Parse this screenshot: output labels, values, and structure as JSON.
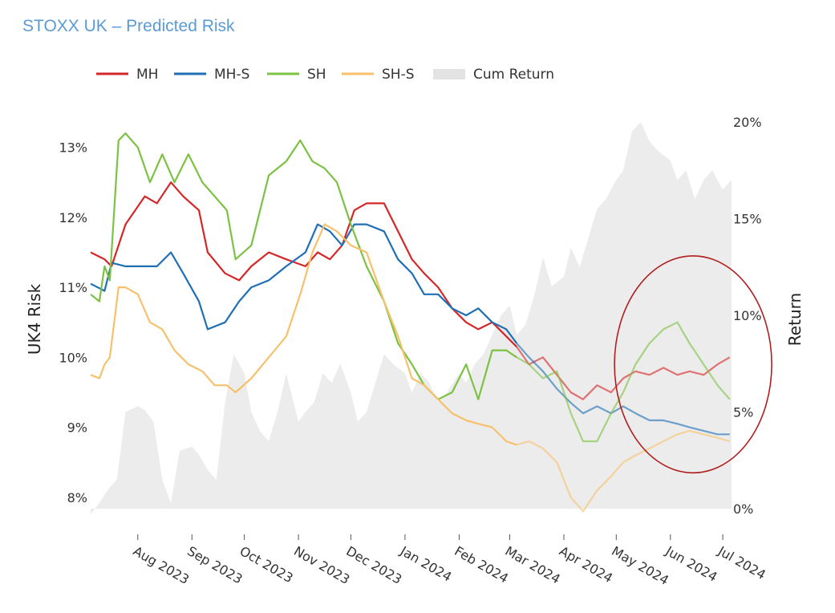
{
  "chart_data": {
    "type": "line",
    "title": "STOXX UK – Predicted Risk",
    "ylabel_left": "UK4 Risk",
    "ylabel_right": "Return",
    "ylim_left": [
      7.7,
      13.5
    ],
    "ylim_right": [
      -0.5,
      20.5
    ],
    "yticks_left": [
      8,
      9,
      10,
      11,
      12,
      13
    ],
    "yticks_left_labels": [
      "8%",
      "9%",
      "10%",
      "11%",
      "12%",
      "13%"
    ],
    "yticks_right": [
      0,
      5,
      10,
      15,
      20
    ],
    "yticks_right_labels": [
      "0%",
      "5%",
      "10%",
      "15%",
      "20%"
    ],
    "x_range": [
      "2023-07-05",
      "2024-07-06"
    ],
    "x_ticks": [
      "2023-08-01",
      "2023-09-01",
      "2023-10-01",
      "2023-11-01",
      "2023-12-01",
      "2024-01-01",
      "2024-02-01",
      "2024-03-01",
      "2024-04-01",
      "2024-05-01",
      "2024-06-01",
      "2024-07-01"
    ],
    "x_tick_labels": [
      "Aug 2023",
      "Sep 2023",
      "Oct 2023",
      "Nov 2023",
      "Dec 2023",
      "Jan 2024",
      "Feb 2024",
      "Mar 2024",
      "Apr 2024",
      "May 2024",
      "Jun 2024",
      "Jul 2024"
    ],
    "legend_position": "top-left",
    "fade_after": "2024-03-10",
    "annotation": {
      "type": "ellipse",
      "color": "#b01e1e",
      "center_date": "2024-06-14",
      "center_risk": 9.9,
      "rx_days": 45,
      "ry_risk": 1.55
    },
    "colors": {
      "MH": "#d62728",
      "MH-S": "#1f6fb5",
      "SH": "#7cc242",
      "SH-S": "#f7c16b",
      "Cum Return": "#ececec"
    },
    "series": [
      {
        "name": "MH",
        "axis": "left",
        "x": [
          "2023-07-05",
          "2023-07-13",
          "2023-07-17",
          "2023-07-25",
          "2023-08-05",
          "2023-08-12",
          "2023-08-20",
          "2023-08-27",
          "2023-09-05",
          "2023-09-10",
          "2023-09-20",
          "2023-09-28",
          "2023-10-05",
          "2023-10-15",
          "2023-10-25",
          "2023-11-05",
          "2023-11-12",
          "2023-11-19",
          "2023-11-26",
          "2023-12-03",
          "2023-12-10",
          "2023-12-20",
          "2023-12-28",
          "2024-01-05",
          "2024-01-12",
          "2024-01-20",
          "2024-01-28",
          "2024-02-05",
          "2024-02-12",
          "2024-02-20",
          "2024-02-28",
          "2024-03-05",
          "2024-03-12",
          "2024-03-20",
          "2024-03-28",
          "2024-04-05",
          "2024-04-12",
          "2024-04-20",
          "2024-04-28",
          "2024-05-05",
          "2024-05-12",
          "2024-05-20",
          "2024-05-28",
          "2024-06-05",
          "2024-06-12",
          "2024-06-20",
          "2024-06-28",
          "2024-07-05"
        ],
        "values": [
          11.5,
          11.4,
          11.3,
          11.9,
          12.3,
          12.2,
          12.5,
          12.3,
          12.1,
          11.5,
          11.2,
          11.1,
          11.3,
          11.5,
          11.4,
          11.3,
          11.5,
          11.4,
          11.6,
          12.1,
          12.2,
          12.2,
          11.8,
          11.4,
          11.2,
          11.0,
          10.7,
          10.5,
          10.4,
          10.5,
          10.3,
          10.15,
          9.9,
          10.0,
          9.75,
          9.5,
          9.4,
          9.6,
          9.5,
          9.7,
          9.8,
          9.75,
          9.85,
          9.75,
          9.8,
          9.75,
          9.9,
          10.0
        ]
      },
      {
        "name": "MH-S",
        "axis": "left",
        "x": [
          "2023-07-05",
          "2023-07-13",
          "2023-07-17",
          "2023-07-25",
          "2023-08-05",
          "2023-08-12",
          "2023-08-20",
          "2023-08-27",
          "2023-09-05",
          "2023-09-10",
          "2023-09-20",
          "2023-09-28",
          "2023-10-05",
          "2023-10-15",
          "2023-10-25",
          "2023-11-05",
          "2023-11-12",
          "2023-11-19",
          "2023-11-26",
          "2023-12-03",
          "2023-12-10",
          "2023-12-20",
          "2023-12-28",
          "2024-01-05",
          "2024-01-12",
          "2024-01-20",
          "2024-01-28",
          "2024-02-05",
          "2024-02-12",
          "2024-02-20",
          "2024-02-28",
          "2024-03-05",
          "2024-03-12",
          "2024-03-20",
          "2024-03-28",
          "2024-04-05",
          "2024-04-12",
          "2024-04-20",
          "2024-04-28",
          "2024-05-05",
          "2024-05-12",
          "2024-05-20",
          "2024-05-28",
          "2024-06-05",
          "2024-06-12",
          "2024-06-20",
          "2024-06-28",
          "2024-07-05"
        ],
        "values": [
          11.05,
          10.95,
          11.35,
          11.3,
          11.3,
          11.3,
          11.5,
          11.2,
          10.8,
          10.4,
          10.5,
          10.8,
          11.0,
          11.1,
          11.3,
          11.5,
          11.9,
          11.8,
          11.6,
          11.9,
          11.9,
          11.8,
          11.4,
          11.2,
          10.9,
          10.9,
          10.7,
          10.6,
          10.7,
          10.5,
          10.4,
          10.2,
          10.0,
          9.8,
          9.55,
          9.35,
          9.2,
          9.3,
          9.2,
          9.3,
          9.2,
          9.1,
          9.1,
          9.05,
          9.0,
          8.95,
          8.9,
          8.9
        ]
      },
      {
        "name": "SH",
        "axis": "left",
        "x": [
          "2023-07-05",
          "2023-07-10",
          "2023-07-13",
          "2023-07-16",
          "2023-07-21",
          "2023-07-25",
          "2023-08-01",
          "2023-08-08",
          "2023-08-15",
          "2023-08-22",
          "2023-08-30",
          "2023-09-07",
          "2023-09-14",
          "2023-09-21",
          "2023-09-26",
          "2023-10-05",
          "2023-10-15",
          "2023-10-25",
          "2023-11-02",
          "2023-11-09",
          "2023-11-16",
          "2023-11-23",
          "2023-12-01",
          "2023-12-10",
          "2023-12-20",
          "2023-12-28",
          "2024-01-05",
          "2024-01-12",
          "2024-01-20",
          "2024-01-28",
          "2024-02-05",
          "2024-02-12",
          "2024-02-20",
          "2024-02-28",
          "2024-03-05",
          "2024-03-12",
          "2024-03-20",
          "2024-03-28",
          "2024-04-05",
          "2024-04-12",
          "2024-04-20",
          "2024-04-28",
          "2024-05-05",
          "2024-05-12",
          "2024-05-20",
          "2024-05-28",
          "2024-06-05",
          "2024-06-12",
          "2024-06-20",
          "2024-06-28",
          "2024-07-05"
        ],
        "values": [
          10.9,
          10.8,
          11.3,
          11.1,
          13.1,
          13.2,
          13.0,
          12.5,
          12.9,
          12.5,
          12.9,
          12.5,
          12.3,
          12.1,
          11.4,
          11.6,
          12.6,
          12.8,
          13.1,
          12.8,
          12.7,
          12.5,
          11.9,
          11.3,
          10.8,
          10.2,
          9.9,
          9.6,
          9.4,
          9.5,
          9.9,
          9.4,
          10.1,
          10.1,
          10.0,
          9.9,
          9.7,
          9.8,
          9.2,
          8.8,
          8.8,
          9.2,
          9.5,
          9.9,
          10.2,
          10.4,
          10.5,
          10.2,
          9.9,
          9.6,
          9.4
        ]
      },
      {
        "name": "SH-S",
        "axis": "left",
        "x": [
          "2023-07-05",
          "2023-07-10",
          "2023-07-13",
          "2023-07-16",
          "2023-07-21",
          "2023-07-25",
          "2023-08-01",
          "2023-08-08",
          "2023-08-15",
          "2023-08-22",
          "2023-08-30",
          "2023-09-07",
          "2023-09-14",
          "2023-09-21",
          "2023-09-26",
          "2023-10-05",
          "2023-10-15",
          "2023-10-25",
          "2023-11-02",
          "2023-11-09",
          "2023-11-16",
          "2023-11-23",
          "2023-12-01",
          "2023-12-10",
          "2023-12-20",
          "2023-12-28",
          "2024-01-05",
          "2024-01-12",
          "2024-01-20",
          "2024-01-28",
          "2024-02-05",
          "2024-02-12",
          "2024-02-20",
          "2024-02-28",
          "2024-03-05",
          "2024-03-12",
          "2024-03-20",
          "2024-03-28",
          "2024-04-05",
          "2024-04-12",
          "2024-04-20",
          "2024-04-28",
          "2024-05-05",
          "2024-05-12",
          "2024-05-20",
          "2024-05-28",
          "2024-06-05",
          "2024-06-12",
          "2024-06-20",
          "2024-06-28",
          "2024-07-05"
        ],
        "values": [
          9.75,
          9.7,
          9.9,
          10.0,
          11.0,
          11.0,
          10.9,
          10.5,
          10.4,
          10.1,
          9.9,
          9.8,
          9.6,
          9.6,
          9.5,
          9.7,
          10.0,
          10.3,
          10.9,
          11.5,
          11.9,
          11.8,
          11.6,
          11.5,
          10.8,
          10.3,
          9.7,
          9.6,
          9.4,
          9.2,
          9.1,
          9.05,
          9.0,
          8.8,
          8.75,
          8.8,
          8.7,
          8.5,
          8.0,
          7.8,
          8.1,
          8.3,
          8.5,
          8.6,
          8.7,
          8.8,
          8.9,
          8.95,
          8.9,
          8.85,
          8.8
        ]
      },
      {
        "name": "Cum Return",
        "axis": "right",
        "type": "area",
        "x": [
          "2023-07-05",
          "2023-07-10",
          "2023-07-15",
          "2023-07-20",
          "2023-07-25",
          "2023-08-01",
          "2023-08-05",
          "2023-08-10",
          "2023-08-15",
          "2023-08-20",
          "2023-08-25",
          "2023-09-01",
          "2023-09-05",
          "2023-09-10",
          "2023-09-15",
          "2023-09-20",
          "2023-09-25",
          "2023-10-01",
          "2023-10-05",
          "2023-10-10",
          "2023-10-15",
          "2023-10-20",
          "2023-10-25",
          "2023-11-01",
          "2023-11-05",
          "2023-11-10",
          "2023-11-15",
          "2023-11-20",
          "2023-11-25",
          "2023-12-01",
          "2023-12-05",
          "2023-12-10",
          "2023-12-15",
          "2023-12-20",
          "2023-12-25",
          "2024-01-01",
          "2024-01-05",
          "2024-01-10",
          "2024-01-15",
          "2024-01-20",
          "2024-01-25",
          "2024-02-01",
          "2024-02-05",
          "2024-02-10",
          "2024-02-15",
          "2024-02-20",
          "2024-02-25",
          "2024-03-01",
          "2024-03-05",
          "2024-03-10",
          "2024-03-15",
          "2024-03-20",
          "2024-03-25",
          "2024-04-01",
          "2024-04-05",
          "2024-04-10",
          "2024-04-15",
          "2024-04-20",
          "2024-04-25",
          "2024-05-01",
          "2024-05-05",
          "2024-05-10",
          "2024-05-15",
          "2024-05-20",
          "2024-05-25",
          "2024-06-01",
          "2024-06-05",
          "2024-06-10",
          "2024-06-15",
          "2024-06-20",
          "2024-06-25",
          "2024-07-01",
          "2024-07-06"
        ],
        "values": [
          -0.3,
          0.3,
          1.0,
          1.5,
          5.0,
          5.3,
          5.1,
          4.5,
          1.5,
          0.3,
          3.0,
          3.2,
          2.8,
          2.0,
          1.5,
          5.5,
          8.0,
          7.0,
          5.0,
          4.0,
          3.5,
          5.0,
          7.0,
          4.5,
          5.0,
          5.5,
          7.0,
          6.5,
          7.5,
          6.0,
          4.5,
          5.0,
          6.5,
          8.0,
          7.5,
          7.0,
          6.0,
          7.0,
          6.5,
          5.5,
          6.0,
          7.0,
          6.5,
          7.5,
          8.0,
          9.0,
          10.0,
          10.5,
          9.0,
          9.5,
          11.0,
          13.0,
          11.5,
          12.0,
          13.5,
          12.5,
          14.0,
          15.5,
          16.0,
          17.0,
          17.5,
          19.5,
          20.0,
          19.0,
          18.5,
          18.0,
          17.0,
          17.5,
          16.0,
          17.0,
          17.5,
          16.5,
          17.0
        ]
      }
    ]
  }
}
